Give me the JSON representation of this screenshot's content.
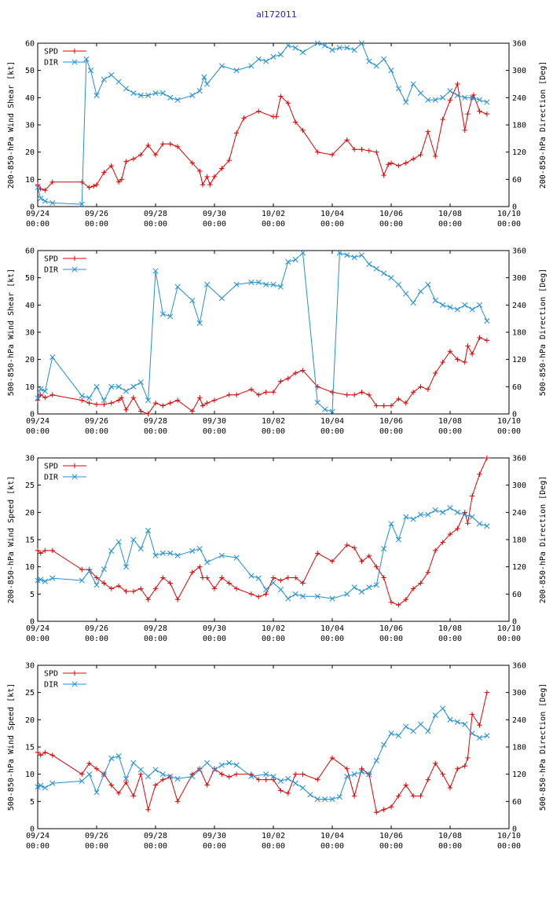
{
  "title": "al172011",
  "colors": {
    "spd": "#e00000",
    "dir": "#1f8fdc"
  },
  "x_ticks": [
    {
      "date": "09/24",
      "time": "00:00"
    },
    {
      "date": "09/26",
      "time": "00:00"
    },
    {
      "date": "09/28",
      "time": "00:00"
    },
    {
      "date": "09/30",
      "time": "00:00"
    },
    {
      "date": "10/02",
      "time": "00:00"
    },
    {
      "date": "10/04",
      "time": "00:00"
    },
    {
      "date": "10/06",
      "time": "00:00"
    },
    {
      "date": "10/08",
      "time": "00:00"
    },
    {
      "date": "10/10",
      "time": "00:00"
    }
  ],
  "chart_data": [
    {
      "type": "line",
      "ylabel": "200-850-hPa Wind Shear [kt]",
      "y2label": "200-850-hPa Direction [Deg]",
      "xlim": [
        0,
        16
      ],
      "ylim": [
        0,
        60
      ],
      "y2lim": [
        0,
        360
      ],
      "yticks": [
        0,
        10,
        20,
        30,
        40,
        50,
        60
      ],
      "y2ticks": [
        0,
        60,
        120,
        180,
        240,
        300,
        360
      ],
      "series": [
        {
          "name": "SPD",
          "x": [
            0.0,
            0.1,
            0.25,
            0.5,
            1.5,
            1.75,
            1.9,
            2.0,
            2.25,
            2.5,
            2.75,
            2.85,
            3.0,
            3.25,
            3.5,
            3.75,
            4.0,
            4.25,
            4.5,
            4.75,
            5.25,
            5.5,
            5.6,
            5.75,
            5.85,
            6.0,
            6.25,
            6.5,
            6.75,
            7.0,
            7.5,
            8.0,
            8.1,
            8.25,
            8.5,
            8.75,
            9.0,
            9.5,
            10.0,
            10.5,
            10.75,
            11.0,
            11.25,
            11.5,
            11.75,
            11.9,
            12.0,
            12.25,
            12.5,
            12.75,
            13.0,
            13.25,
            13.5,
            13.75,
            14.0,
            14.25,
            14.5,
            14.6,
            14.75,
            14.8,
            15.0,
            15.25
          ],
          "values": [
            8,
            6.5,
            6,
            9,
            9,
            7,
            7.5,
            8,
            12.5,
            15,
            9,
            10,
            16.5,
            17.5,
            19,
            22.5,
            19,
            23,
            23,
            22,
            16,
            13,
            8,
            11,
            8,
            11,
            14,
            17,
            27,
            32.5,
            35,
            33,
            33,
            40.5,
            38,
            31,
            28,
            20,
            19,
            24.5,
            21,
            21,
            20.5,
            20,
            11.5,
            15.5,
            16,
            15,
            16,
            17.5,
            19,
            27.5,
            18.5,
            32,
            39,
            45,
            28,
            34,
            40,
            41,
            35,
            34
          ]
        },
        {
          "name": "DIR",
          "x": [
            0.0,
            0.1,
            0.25,
            0.5,
            1.5,
            1.65,
            1.8,
            2.0,
            2.25,
            2.5,
            2.75,
            3.0,
            3.25,
            3.5,
            3.75,
            4.0,
            4.25,
            4.5,
            4.75,
            5.25,
            5.5,
            5.65,
            5.75,
            6.25,
            6.75,
            7.25,
            7.5,
            7.75,
            8.0,
            8.25,
            8.5,
            8.75,
            9.0,
            9.5,
            9.75,
            10.0,
            10.25,
            10.5,
            10.75,
            11.0,
            11.25,
            11.5,
            11.75,
            12.0,
            12.25,
            12.5,
            12.75,
            13.0,
            13.25,
            13.5,
            13.75,
            14.0,
            14.25,
            14.5,
            14.75,
            15.0,
            15.25
          ],
          "values": [
            42,
            18,
            12,
            8,
            5,
            325,
            300,
            245,
            280,
            290,
            275,
            260,
            250,
            245,
            245,
            250,
            250,
            240,
            235,
            245,
            255,
            285,
            270,
            310,
            300,
            310,
            325,
            320,
            330,
            335,
            355,
            350,
            340,
            360,
            355,
            345,
            350,
            350,
            345,
            360,
            320,
            310,
            325,
            300,
            260,
            230,
            270,
            250,
            235,
            235,
            240,
            255,
            245,
            240,
            240,
            235,
            230
          ]
        }
      ]
    },
    {
      "type": "line",
      "ylabel": "500-850-hPa Wind Shear [kt]",
      "y2label": "500-850-hPa Direction [Deg]",
      "xlim": [
        0,
        16
      ],
      "ylim": [
        0,
        60
      ],
      "y2lim": [
        0,
        360
      ],
      "yticks": [
        0,
        10,
        20,
        30,
        40,
        50,
        60
      ],
      "y2ticks": [
        0,
        60,
        120,
        180,
        240,
        300,
        360
      ],
      "series": [
        {
          "name": "SPD",
          "x": [
            0.0,
            0.1,
            0.25,
            0.5,
            1.5,
            1.75,
            2.0,
            2.25,
            2.5,
            2.75,
            2.85,
            3.0,
            3.25,
            3.5,
            3.75,
            4.0,
            4.25,
            4.5,
            4.75,
            5.25,
            5.5,
            5.6,
            5.75,
            6.0,
            6.5,
            6.75,
            7.25,
            7.5,
            7.75,
            8.0,
            8.25,
            8.5,
            8.75,
            9.0,
            9.5,
            10.0,
            10.5,
            10.75,
            11.0,
            11.25,
            11.5,
            11.75,
            12.0,
            12.25,
            12.5,
            12.75,
            13.0,
            13.25,
            13.5,
            13.75,
            14.0,
            14.25,
            14.5,
            14.6,
            14.75,
            15.0,
            15.25
          ],
          "values": [
            5,
            7,
            6,
            7,
            5,
            4,
            3.5,
            3.5,
            4,
            5,
            6,
            1.5,
            6,
            1,
            0,
            4,
            3,
            4,
            5,
            1,
            6,
            3,
            4,
            5,
            7,
            7,
            9,
            7,
            8,
            8,
            12,
            13,
            15,
            16,
            10,
            8,
            7,
            7,
            8,
            7,
            3,
            3,
            3,
            5.5,
            4,
            8,
            10,
            9,
            15,
            19,
            23,
            20,
            19,
            25,
            22,
            28,
            27
          ]
        },
        {
          "name": "DIR",
          "x": [
            0.0,
            0.1,
            0.25,
            0.5,
            1.5,
            1.75,
            2.0,
            2.25,
            2.5,
            2.75,
            3.0,
            3.25,
            3.5,
            3.75,
            4.0,
            4.25,
            4.5,
            4.75,
            5.25,
            5.5,
            5.75,
            6.25,
            6.75,
            7.25,
            7.5,
            7.75,
            8.0,
            8.25,
            8.5,
            8.75,
            9.0,
            9.5,
            9.75,
            10.0,
            10.25,
            10.5,
            10.75,
            11.0,
            11.25,
            11.5,
            11.75,
            12.0,
            12.25,
            12.5,
            12.75,
            13.0,
            13.25,
            13.5,
            13.75,
            14.0,
            14.25,
            14.5,
            14.75,
            15.0,
            15.25
          ],
          "values": [
            35,
            55,
            50,
            125,
            40,
            35,
            60,
            30,
            60,
            60,
            50,
            60,
            70,
            30,
            315,
            220,
            215,
            280,
            250,
            200,
            285,
            255,
            285,
            290,
            290,
            285,
            285,
            280,
            335,
            340,
            355,
            25,
            10,
            5,
            355,
            350,
            345,
            350,
            330,
            320,
            310,
            300,
            285,
            265,
            245,
            270,
            285,
            250,
            240,
            235,
            230,
            240,
            230,
            240,
            205
          ]
        }
      ]
    },
    {
      "type": "line",
      "ylabel": "200-850-hPa Wind Speed [kt]",
      "y2label": "200-850-hPa Direction [Deg]",
      "xlim": [
        0,
        16
      ],
      "ylim": [
        0,
        30
      ],
      "y2lim": [
        0,
        360
      ],
      "yticks": [
        0,
        5,
        10,
        15,
        20,
        25,
        30
      ],
      "y2ticks": [
        0,
        60,
        120,
        180,
        240,
        300,
        360
      ],
      "series": [
        {
          "name": "SPD",
          "x": [
            0.0,
            0.1,
            0.25,
            0.5,
            1.5,
            1.75,
            2.0,
            2.25,
            2.5,
            2.75,
            3.0,
            3.25,
            3.5,
            3.75,
            4.0,
            4.25,
            4.5,
            4.75,
            5.25,
            5.5,
            5.6,
            5.75,
            6.0,
            6.25,
            6.5,
            6.75,
            7.25,
            7.5,
            7.75,
            8.0,
            8.25,
            8.5,
            8.75,
            9.0,
            9.5,
            10.0,
            10.5,
            10.75,
            11.0,
            11.25,
            11.5,
            11.75,
            12.0,
            12.25,
            12.5,
            12.75,
            13.0,
            13.25,
            13.5,
            13.75,
            14.0,
            14.25,
            14.5,
            14.6,
            14.75,
            15.0,
            15.25
          ],
          "values": [
            13,
            12.5,
            13,
            13,
            9.5,
            9.5,
            8,
            7,
            6,
            6.5,
            5.5,
            5.5,
            6,
            4,
            6,
            8,
            7,
            4,
            9,
            10,
            8,
            8,
            6,
            8,
            7,
            6,
            5,
            4.5,
            5,
            8,
            7.5,
            8,
            8,
            7,
            12.5,
            11,
            14,
            13.5,
            11,
            12,
            10,
            8,
            3.5,
            3,
            4,
            6,
            7,
            9,
            13,
            14.5,
            16,
            17,
            20,
            18,
            23,
            27,
            30
          ]
        },
        {
          "name": "DIR",
          "x": [
            0.0,
            0.1,
            0.25,
            0.5,
            1.5,
            1.75,
            2.0,
            2.25,
            2.5,
            2.75,
            3.0,
            3.25,
            3.5,
            3.75,
            4.0,
            4.25,
            4.5,
            4.75,
            5.25,
            5.5,
            5.75,
            6.25,
            6.75,
            7.25,
            7.5,
            7.75,
            8.0,
            8.25,
            8.5,
            8.75,
            9.0,
            9.5,
            10.0,
            10.5,
            10.75,
            11.0,
            11.25,
            11.5,
            11.75,
            12.0,
            12.25,
            12.5,
            12.75,
            13.0,
            13.25,
            13.5,
            13.75,
            14.0,
            14.25,
            14.5,
            14.75,
            15.0,
            15.25
          ],
          "values": [
            90,
            92,
            88,
            95,
            90,
            110,
            80,
            115,
            155,
            175,
            120,
            180,
            160,
            200,
            145,
            150,
            150,
            145,
            155,
            160,
            130,
            145,
            140,
            100,
            95,
            70,
            85,
            70,
            50,
            60,
            55,
            55,
            50,
            60,
            75,
            65,
            75,
            80,
            160,
            215,
            180,
            230,
            225,
            235,
            235,
            245,
            240,
            250,
            240,
            235,
            230,
            215,
            210
          ]
        }
      ]
    },
    {
      "type": "line",
      "ylabel": "500-850-hPa Wind Speed [kt]",
      "y2label": "500-850-hPa Direction [Deg]",
      "xlim": [
        0,
        16
      ],
      "ylim": [
        0,
        30
      ],
      "y2lim": [
        0,
        360
      ],
      "yticks": [
        0,
        5,
        10,
        15,
        20,
        25,
        30
      ],
      "y2ticks": [
        0,
        60,
        120,
        180,
        240,
        300,
        360
      ],
      "series": [
        {
          "name": "SPD",
          "x": [
            0.0,
            0.1,
            0.25,
            0.5,
            1.5,
            1.75,
            2.0,
            2.25,
            2.5,
            2.75,
            3.0,
            3.25,
            3.5,
            3.75,
            4.0,
            4.25,
            4.5,
            4.75,
            5.25,
            5.5,
            5.75,
            6.0,
            6.25,
            6.5,
            6.75,
            7.25,
            7.5,
            7.75,
            8.0,
            8.25,
            8.5,
            8.75,
            9.0,
            9.5,
            10.0,
            10.5,
            10.75,
            11.0,
            11.25,
            11.5,
            11.75,
            12.0,
            12.25,
            12.5,
            12.75,
            13.0,
            13.25,
            13.5,
            13.75,
            14.0,
            14.25,
            14.5,
            14.6,
            14.75,
            15.0,
            15.25
          ],
          "values": [
            14,
            13.5,
            14,
            13.5,
            10,
            12,
            11,
            10,
            8,
            6.5,
            8.5,
            6,
            10,
            3.5,
            8,
            9,
            9.5,
            5,
            10,
            11,
            8,
            11,
            10,
            9.5,
            10,
            10,
            9,
            9,
            9,
            7,
            6.5,
            10,
            10,
            9,
            13,
            11,
            6,
            11,
            10,
            3,
            3.5,
            4,
            6,
            8,
            6,
            6,
            9,
            12,
            10,
            7.5,
            11,
            11.5,
            13,
            21,
            19,
            25
          ]
        },
        {
          "name": "DIR",
          "x": [
            0.0,
            0.1,
            0.25,
            0.5,
            1.5,
            1.75,
            2.0,
            2.25,
            2.5,
            2.75,
            3.0,
            3.25,
            3.5,
            3.75,
            4.0,
            4.25,
            4.5,
            4.75,
            5.25,
            5.5,
            5.75,
            6.0,
            6.25,
            6.5,
            6.75,
            7.25,
            7.75,
            8.0,
            8.25,
            8.5,
            8.75,
            9.0,
            9.25,
            9.5,
            9.75,
            10.0,
            10.25,
            10.5,
            10.75,
            11.0,
            11.25,
            11.5,
            11.75,
            12.0,
            12.25,
            12.5,
            12.75,
            13.0,
            13.25,
            13.5,
            13.75,
            14.0,
            14.25,
            14.5,
            14.75,
            15.0,
            15.25
          ],
          "values": [
            92,
            95,
            90,
            100,
            105,
            120,
            80,
            120,
            155,
            160,
            110,
            145,
            130,
            115,
            130,
            120,
            115,
            110,
            115,
            130,
            145,
            130,
            140,
            145,
            140,
            115,
            120,
            115,
            105,
            110,
            100,
            90,
            75,
            65,
            65,
            65,
            70,
            115,
            120,
            125,
            120,
            150,
            185,
            210,
            205,
            225,
            215,
            230,
            215,
            250,
            265,
            240,
            235,
            230,
            210,
            200,
            205
          ]
        }
      ]
    }
  ]
}
